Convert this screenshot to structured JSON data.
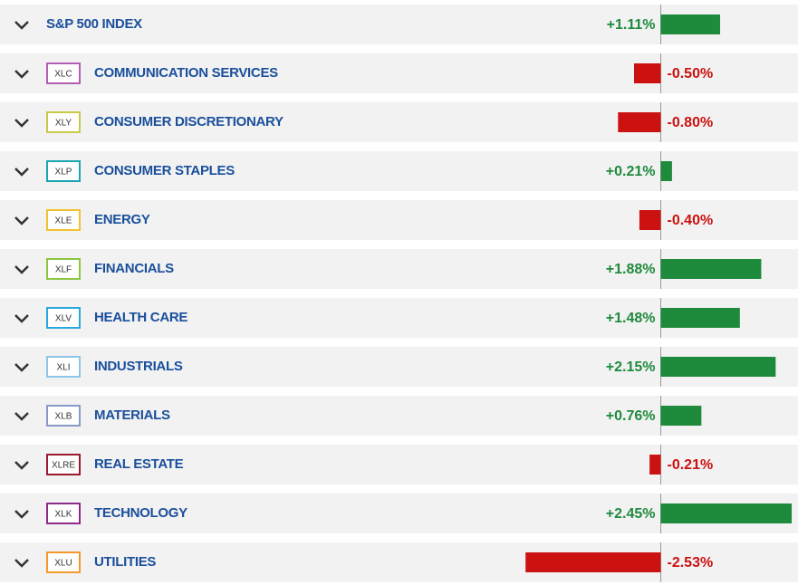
{
  "chart_data": {
    "type": "bar",
    "categories": [
      "S&P 500 INDEX",
      "COMMUNICATION SERVICES",
      "CONSUMER DISCRETIONARY",
      "CONSUMER STAPLES",
      "ENERGY",
      "FINANCIALS",
      "HEALTH CARE",
      "INDUSTRIALS",
      "MATERIALS",
      "REAL ESTATE",
      "TECHNOLOGY",
      "UTILITIES"
    ],
    "tickers": [
      null,
      "XLC",
      "XLY",
      "XLP",
      "XLE",
      "XLF",
      "XLV",
      "XLI",
      "XLB",
      "XLRE",
      "XLK",
      "XLU"
    ],
    "ticker_colors": [
      null,
      "#b15fb5",
      "#c8c84a",
      "#1aa6b0",
      "#f2c12e",
      "#8cc63f",
      "#29a8e0",
      "#8ec6e8",
      "#8a9ac8",
      "#9b1b30",
      "#8e2a8e",
      "#f39a2b"
    ],
    "values": [
      1.11,
      -0.5,
      -0.8,
      0.21,
      -0.4,
      1.88,
      1.48,
      2.15,
      0.76,
      -0.21,
      2.45,
      -2.53
    ],
    "value_labels": [
      "+1.11%",
      "-0.50%",
      "-0.80%",
      "+0.21%",
      "-0.40%",
      "+1.88%",
      "+1.48%",
      "+2.15%",
      "+0.76%",
      "-0.21%",
      "+2.45%",
      "-2.53%"
    ],
    "positive_color": "#1e8a3c",
    "negative_color": "#cc1111"
  }
}
